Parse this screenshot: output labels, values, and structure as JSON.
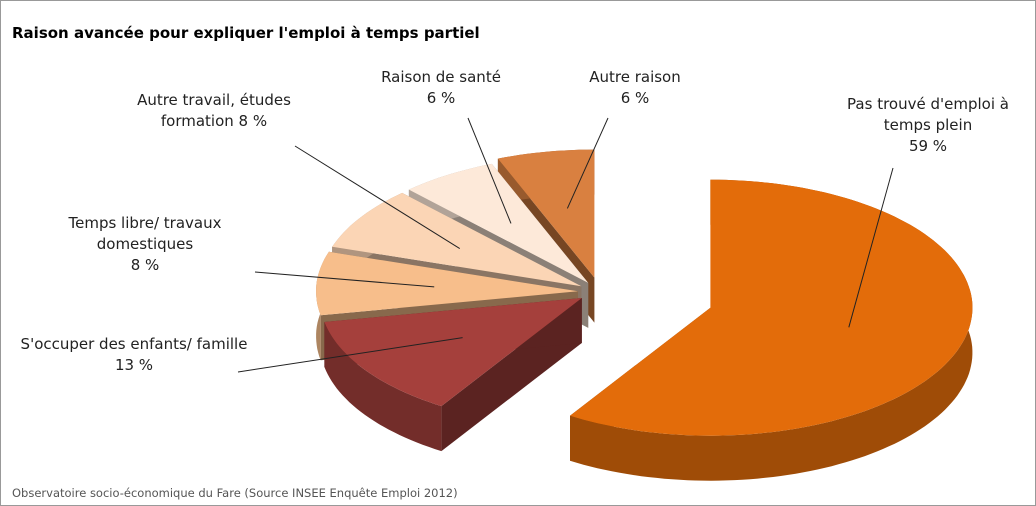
{
  "chart_data": {
    "type": "pie",
    "title": "Raison avancée pour expliquer l'emploi à temps partiel",
    "source": "Observatoire socio-économique du Fare (Source INSEE Enquête Emploi 2012)",
    "categories": [
      "Pas trouvé d'emploi à temps plein",
      "S'occuper des enfants/ famille",
      "Temps libre/ travaux domestiques",
      "Autre travail, études formation",
      "Raison de santé",
      "Autre raison"
    ],
    "values": [
      59,
      13,
      8,
      8,
      6,
      6
    ],
    "value_labels": [
      "59 %",
      "13 %",
      "8 %",
      "8 %",
      "6 %",
      "6 %"
    ],
    "colors": [
      "#e36c0a",
      "#a5403c",
      "#f7be8b",
      "#fbd5b5",
      "#fde9d9",
      "#d98040"
    ]
  }
}
